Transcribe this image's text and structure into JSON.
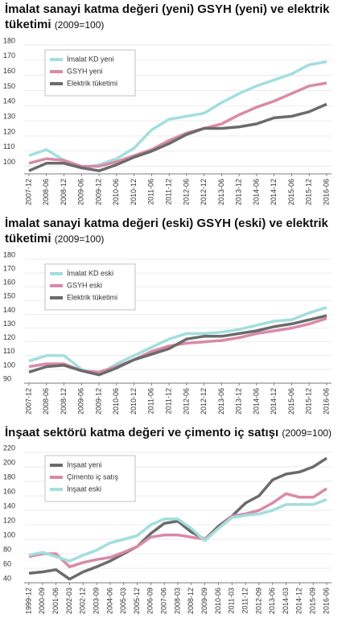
{
  "chart_data": [
    {
      "type": "line",
      "title": "İmalat sanayi katma değeri (yeni) GSYH (yeni) ve elektrik tüketimi",
      "subtitle": "(2009=100)",
      "categories": [
        "2007-12",
        "2008-06",
        "2008-12",
        "2009-06",
        "2009-12",
        "2010-06",
        "2010-12",
        "2011-06",
        "2011-12",
        "2012-06",
        "2012-12",
        "2013-06",
        "2013-12",
        "2014-06",
        "2014-12",
        "2015-06",
        "2015-12",
        "2016-06"
      ],
      "series": [
        {
          "name": "İmalat KD yeni",
          "color": "#a3dede",
          "values": [
            107,
            111,
            104,
            99,
            101,
            105,
            112,
            124,
            131,
            133,
            135,
            142,
            148,
            153,
            157,
            161,
            167,
            169
          ]
        },
        {
          "name": "GSYH yeni",
          "color": "#d98aa8",
          "values": [
            102,
            105,
            104,
            100,
            100,
            103,
            107,
            111,
            117,
            122,
            125,
            128,
            134,
            139,
            143,
            148,
            153,
            155
          ]
        },
        {
          "name": "Elektrik tüketimi",
          "color": "#6b6b6b",
          "values": [
            97,
            102,
            102,
            99,
            97,
            101,
            106,
            110,
            115,
            121,
            125,
            125,
            126,
            128,
            132,
            133,
            136,
            141
          ]
        }
      ],
      "ylim": [
        95,
        180
      ],
      "yticks": [
        100,
        110,
        120,
        130,
        140,
        150,
        160,
        170,
        180
      ],
      "grid": true
    },
    {
      "type": "line",
      "title": "İmalat sanayi katma değeri (eski) GSYH (eski) ve elektrik tüketimi",
      "subtitle": "(2009=100)",
      "categories": [
        "2007-12",
        "2008-06",
        "2008-12",
        "2009-06",
        "2009-12",
        "2010-06",
        "2010-12",
        "2011-06",
        "2011-12",
        "2012-06",
        "2012-12",
        "2013-06",
        "2013-12",
        "2014-06",
        "2014-12",
        "2015-06",
        "2015-12",
        "2016-06"
      ],
      "series": [
        {
          "name": "İmalat KD eski",
          "color": "#a3dede",
          "values": [
            106,
            110,
            110,
            100,
            96,
            104,
            110,
            116,
            122,
            126,
            126,
            127,
            129,
            132,
            135,
            136,
            141,
            145
          ]
        },
        {
          "name": "GSYH eski",
          "color": "#d98aa8",
          "values": [
            102,
            104,
            104,
            99,
            98,
            102,
            107,
            113,
            117,
            119,
            120,
            121,
            123,
            126,
            128,
            130,
            133,
            137
          ]
        },
        {
          "name": "Elektrik tüketimi",
          "color": "#6b6b6b",
          "values": [
            98,
            102,
            103,
            99,
            96,
            101,
            107,
            111,
            115,
            122,
            124,
            124,
            126,
            128,
            131,
            133,
            136,
            139
          ]
        }
      ],
      "ylim": [
        90,
        180
      ],
      "yticks": [
        90,
        100,
        110,
        120,
        130,
        140,
        150,
        160,
        170,
        180
      ],
      "grid": true
    },
    {
      "type": "line",
      "title": "İnşaat sektörü katma değeri ve çimento iç satışı",
      "subtitle": "(2009=100)",
      "categories": [
        "1999-12",
        "2000-09",
        "2001-06",
        "2002-03",
        "2002-12",
        "2003-09",
        "2004-06",
        "2005-03",
        "2005-12",
        "2006-09",
        "2007-06",
        "2008-03",
        "2008-12",
        "2009-09",
        "2010-06",
        "2011-03",
        "2011-12",
        "2012-09",
        "2013-06",
        "2014-03",
        "2014-12",
        "2015-09",
        "2016-06"
      ],
      "series": [
        {
          "name": "İnşaat yeni",
          "color": "#6b6b6b",
          "values": [
            53,
            55,
            58,
            45,
            55,
            62,
            70,
            80,
            90,
            108,
            122,
            125,
            110,
            100,
            118,
            132,
            150,
            160,
            182,
            190,
            193,
            200,
            212
          ]
        },
        {
          "name": "Çimento iç satış",
          "color": "#d98aa8",
          "values": [
            76,
            80,
            80,
            62,
            68,
            72,
            75,
            82,
            90,
            103,
            106,
            106,
            103,
            100,
            115,
            132,
            135,
            140,
            150,
            163,
            158,
            158,
            170
          ]
        },
        {
          "name": "İnşaat eski",
          "color": "#a3dede",
          "values": [
            78,
            82,
            76,
            70,
            78,
            85,
            95,
            100,
            105,
            120,
            128,
            128,
            115,
            98,
            115,
            130,
            133,
            135,
            140,
            148,
            148,
            148,
            155
          ]
        }
      ],
      "ylim": [
        40,
        220
      ],
      "yticks": [
        40,
        60,
        80,
        100,
        120,
        140,
        160,
        180,
        200,
        220
      ],
      "grid": true
    }
  ]
}
